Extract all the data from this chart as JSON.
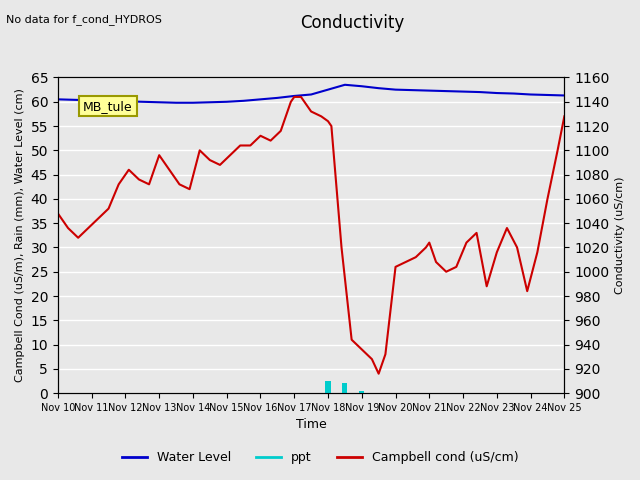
{
  "title": "Conductivity",
  "top_left_text": "No data for f_cond_HYDROS",
  "xlabel": "Time",
  "ylabel_left": "Campbell Cond (uS/m), Rain (mm), Water Level (cm)",
  "ylabel_right": "Conductivity (uS/cm)",
  "ylim_left": [
    0,
    65
  ],
  "ylim_right": [
    900,
    1160
  ],
  "xlim": [
    0,
    15
  ],
  "annotation_box": "MB_tule",
  "background_color": "#e8e8e8",
  "plot_bg_color": "#e8e8e8",
  "grid_color": "white",
  "water_level_color": "#0000cc",
  "ppt_color": "#00cccc",
  "campbell_color": "#cc0000",
  "legend_entries": [
    "Water Level",
    "ppt",
    "Campbell cond (uS/cm)"
  ],
  "xtick_labels": [
    "Nov 10",
    "Nov 11",
    "Nov 12",
    "Nov 13",
    "Nov 14",
    "Nov 15",
    "Nov 16",
    "Nov 17",
    "Nov 18",
    "Nov 19",
    "Nov 20",
    "Nov 21",
    "Nov 22",
    "Nov 23",
    "Nov 24",
    "Nov 25"
  ],
  "yticks_left": [
    0,
    5,
    10,
    15,
    20,
    25,
    30,
    35,
    40,
    45,
    50,
    55,
    60,
    65
  ],
  "yticks_right": [
    900,
    920,
    940,
    960,
    980,
    1000,
    1020,
    1040,
    1060,
    1080,
    1100,
    1120,
    1140,
    1160
  ],
  "water_level_x": [
    0,
    0.5,
    1.0,
    1.5,
    2.0,
    2.5,
    3.0,
    3.5,
    4.0,
    4.5,
    5.0,
    5.5,
    6.0,
    6.5,
    7.0,
    7.5,
    8.0,
    8.5,
    9.0,
    9.5,
    10.0,
    10.5,
    11.0,
    11.5,
    12.0,
    12.5,
    13.0,
    13.5,
    14.0,
    14.5,
    15.0
  ],
  "water_level_y": [
    60.5,
    60.4,
    60.3,
    60.2,
    60.1,
    60.0,
    59.9,
    59.8,
    59.8,
    59.9,
    60.0,
    60.2,
    60.5,
    60.8,
    61.2,
    61.5,
    62.5,
    63.5,
    63.2,
    62.8,
    62.5,
    62.4,
    62.3,
    62.2,
    62.1,
    62.0,
    61.8,
    61.7,
    61.5,
    61.4,
    61.3
  ],
  "ppt_x": [
    0,
    0.5,
    1.0,
    1.5,
    2.0,
    2.5,
    3.0,
    3.5,
    4.0,
    4.5,
    5.0,
    5.5,
    6.0,
    6.5,
    7.0,
    7.5,
    8.0,
    8.5,
    9.0,
    9.5,
    10.0,
    10.5,
    11.0,
    11.5,
    12.0,
    12.5,
    13.0,
    13.5,
    14.0,
    14.5,
    15.0
  ],
  "ppt_y": [
    0,
    0.1,
    0,
    0,
    0,
    0,
    0,
    0,
    0,
    0,
    0,
    0.1,
    0,
    0,
    0,
    0,
    2.5,
    2.0,
    0.5,
    0.1,
    0,
    0,
    0,
    0,
    0,
    0,
    0,
    0,
    0,
    0,
    0
  ],
  "campbell_x": [
    0,
    0.3,
    0.6,
    0.9,
    1.2,
    1.5,
    1.8,
    2.1,
    2.4,
    2.7,
    3.0,
    3.3,
    3.6,
    3.9,
    4.2,
    4.5,
    4.8,
    5.1,
    5.4,
    5.7,
    6.0,
    6.3,
    6.6,
    6.9,
    7.0,
    7.2,
    7.5,
    7.8,
    8.0,
    8.1,
    8.4,
    8.7,
    9.0,
    9.3,
    9.5,
    9.7,
    10.0,
    10.3,
    10.6,
    10.9,
    11.0,
    11.2,
    11.5,
    11.8,
    12.1,
    12.4,
    12.7,
    13.0,
    13.3,
    13.6,
    13.9,
    14.2,
    14.5,
    14.8,
    15.0
  ],
  "campbell_y": [
    37,
    34,
    32,
    34,
    36,
    38,
    43,
    46,
    44,
    43,
    49,
    46,
    43,
    42,
    50,
    48,
    47,
    49,
    51,
    51,
    53,
    52,
    54,
    60,
    61,
    61,
    58,
    57,
    56,
    55,
    30,
    11,
    9,
    7,
    4,
    8,
    26,
    27,
    28,
    30,
    31,
    27,
    25,
    26,
    31,
    33,
    22,
    29,
    34,
    30,
    21,
    29,
    40,
    50,
    57
  ]
}
